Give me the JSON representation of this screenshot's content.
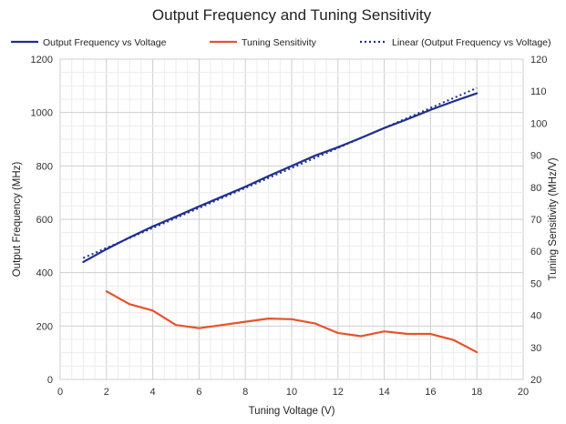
{
  "chart_data": {
    "type": "line",
    "title": "Output Frequency and Tuning Sensitivity",
    "xlabel": "Tuning Voltage (V)",
    "ylabel": "Output Frequency (MHz)",
    "y2label": "Tuning Sensitivity (MHz/V)",
    "xlim": [
      0,
      20
    ],
    "ylim": [
      0,
      1200
    ],
    "y2lim": [
      20,
      120
    ],
    "xticks": [
      0,
      2,
      4,
      6,
      8,
      10,
      12,
      14,
      16,
      18,
      20
    ],
    "yticks": [
      0,
      200,
      400,
      600,
      800,
      1000,
      1200
    ],
    "y2ticks": [
      20,
      30,
      40,
      50,
      60,
      70,
      80,
      90,
      100,
      110,
      120
    ],
    "grid": true,
    "legend_position": "top",
    "series": [
      {
        "name": "Output Frequency vs Voltage",
        "axis": "left",
        "color": "#1f2f8f",
        "style": "solid",
        "x": [
          1,
          2,
          3,
          4,
          5,
          6,
          7,
          8,
          9,
          10,
          11,
          12,
          13,
          14,
          15,
          16,
          17,
          18
        ],
        "y": [
          440,
          488,
          532,
          573,
          610,
          648,
          685,
          722,
          762,
          800,
          838,
          870,
          905,
          942,
          975,
          1010,
          1042,
          1072
        ]
      },
      {
        "name": "Tuning Sensitivity",
        "axis": "right",
        "color": "#e8522a",
        "style": "solid",
        "x": [
          2,
          3,
          4,
          5,
          6,
          7,
          8,
          9,
          10,
          11,
          12,
          13,
          14,
          15,
          16,
          17,
          18
        ],
        "y": [
          47.5,
          43.5,
          41.5,
          37,
          36,
          37,
          38,
          39,
          38.8,
          37.5,
          34.5,
          33.5,
          35,
          34.2,
          34.2,
          32.3,
          28.5
        ]
      },
      {
        "name": "Linear (Output Frequency vs Voltage)",
        "axis": "left",
        "color": "#1f2f8f",
        "style": "dotted",
        "x": [
          1,
          18
        ],
        "y": [
          455,
          1092
        ]
      }
    ]
  }
}
